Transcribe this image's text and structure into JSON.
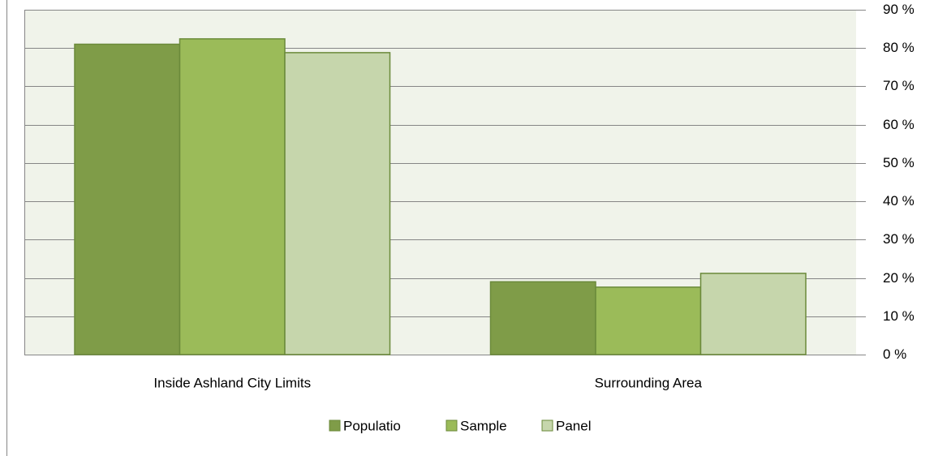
{
  "chart_data": {
    "type": "bar",
    "categories": [
      "Inside Ashland City Limits",
      "Surrounding Area"
    ],
    "series": [
      {
        "name": "Populatio",
        "color": "#7f9c48",
        "values": [
          81,
          19
        ]
      },
      {
        "name": "Sample",
        "color": "#9bbb59",
        "values": [
          82.4,
          17.6
        ]
      },
      {
        "name": "Panel",
        "color": "#c6d6ac",
        "values": [
          78.8,
          21.2
        ]
      }
    ],
    "ylim": [
      0,
      90
    ],
    "yticks": [
      {
        "value": 0,
        "label": "0 %"
      },
      {
        "value": 10,
        "label": "10 %"
      },
      {
        "value": 20,
        "label": "20 %"
      },
      {
        "value": 30,
        "label": "30 %"
      },
      {
        "value": 40,
        "label": "40 %"
      },
      {
        "value": 50,
        "label": "50 %"
      },
      {
        "value": 60,
        "label": "60 %"
      },
      {
        "value": 70,
        "label": "70 %"
      },
      {
        "value": 80,
        "label": "80 %"
      },
      {
        "value": 90,
        "label": "90 %"
      }
    ],
    "grid": true,
    "legend": "bottom"
  }
}
